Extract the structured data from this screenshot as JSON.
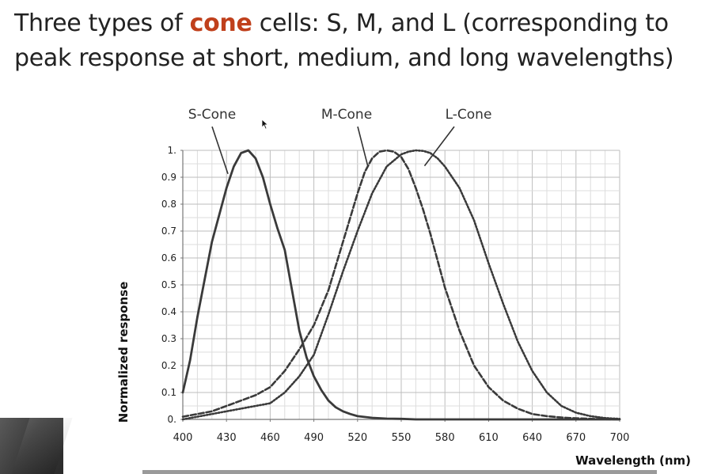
{
  "slide": {
    "title_before": "Three types of ",
    "title_accent": "cone",
    "title_after": " cells: S, M, and L (corresponding to peak response at short, medium, and long wavelengths)",
    "accent_color": "#c0401c"
  },
  "chart_data": {
    "type": "line",
    "xlabel": "Wavelength (nm)",
    "ylabel": "Normalized response",
    "xlim": [
      400,
      700
    ],
    "ylim": [
      0,
      1
    ],
    "x_ticks": [
      "400",
      "430",
      "460",
      "490",
      "520",
      "550",
      "580",
      "610",
      "640",
      "670",
      "700"
    ],
    "y_ticks": [
      "0.",
      "0.1",
      "0.2",
      "0.3",
      "0.4",
      "0.5",
      "0.6",
      "0.7",
      "0.8",
      "0.9",
      "1."
    ],
    "grid": true,
    "series": [
      {
        "name": "S-Cone",
        "style": "solid",
        "x": [
          400,
          405,
          410,
          415,
          420,
          425,
          430,
          435,
          440,
          445,
          450,
          455,
          460,
          465,
          470,
          475,
          480,
          485,
          490,
          495,
          500,
          505,
          510,
          515,
          520,
          530,
          540,
          550,
          560,
          580,
          600,
          650,
          700
        ],
        "y": [
          0.1,
          0.22,
          0.38,
          0.52,
          0.66,
          0.76,
          0.86,
          0.94,
          0.99,
          1.0,
          0.97,
          0.9,
          0.8,
          0.71,
          0.63,
          0.48,
          0.33,
          0.23,
          0.16,
          0.11,
          0.07,
          0.045,
          0.03,
          0.02,
          0.012,
          0.006,
          0.003,
          0.002,
          0.0,
          0.0,
          0.0,
          0.0,
          0.0
        ]
      },
      {
        "name": "M-Cone",
        "style": "dashed",
        "x": [
          400,
          410,
          420,
          430,
          440,
          450,
          460,
          470,
          480,
          490,
          500,
          510,
          515,
          520,
          525,
          530,
          535,
          540,
          545,
          550,
          555,
          560,
          565,
          570,
          575,
          580,
          590,
          600,
          610,
          620,
          630,
          640,
          650,
          660,
          670,
          680,
          690,
          700
        ],
        "y": [
          0.01,
          0.02,
          0.03,
          0.05,
          0.07,
          0.09,
          0.12,
          0.18,
          0.26,
          0.35,
          0.48,
          0.66,
          0.75,
          0.84,
          0.92,
          0.97,
          0.995,
          1.0,
          0.995,
          0.975,
          0.93,
          0.86,
          0.78,
          0.69,
          0.59,
          0.49,
          0.33,
          0.2,
          0.12,
          0.07,
          0.04,
          0.02,
          0.012,
          0.007,
          0.004,
          0.002,
          0.001,
          0.0
        ]
      },
      {
        "name": "L-Cone",
        "style": "dotted",
        "x": [
          400,
          420,
          440,
          460,
          470,
          480,
          490,
          500,
          510,
          520,
          530,
          540,
          550,
          555,
          560,
          565,
          570,
          575,
          580,
          590,
          600,
          610,
          620,
          630,
          640,
          650,
          660,
          670,
          680,
          690,
          700
        ],
        "y": [
          0.0,
          0.02,
          0.04,
          0.06,
          0.1,
          0.16,
          0.24,
          0.39,
          0.55,
          0.7,
          0.84,
          0.94,
          0.985,
          0.995,
          1.0,
          0.998,
          0.99,
          0.97,
          0.94,
          0.86,
          0.74,
          0.58,
          0.43,
          0.29,
          0.18,
          0.1,
          0.05,
          0.025,
          0.012,
          0.005,
          0.002
        ]
      }
    ],
    "annotations": [
      {
        "text": "S-Cone",
        "target_x": 431,
        "target_y": 0.93
      },
      {
        "text": "M-Cone",
        "target_x": 527,
        "target_y": 0.96
      },
      {
        "text": "L-Cone",
        "target_x": 566,
        "target_y": 0.96
      }
    ]
  }
}
